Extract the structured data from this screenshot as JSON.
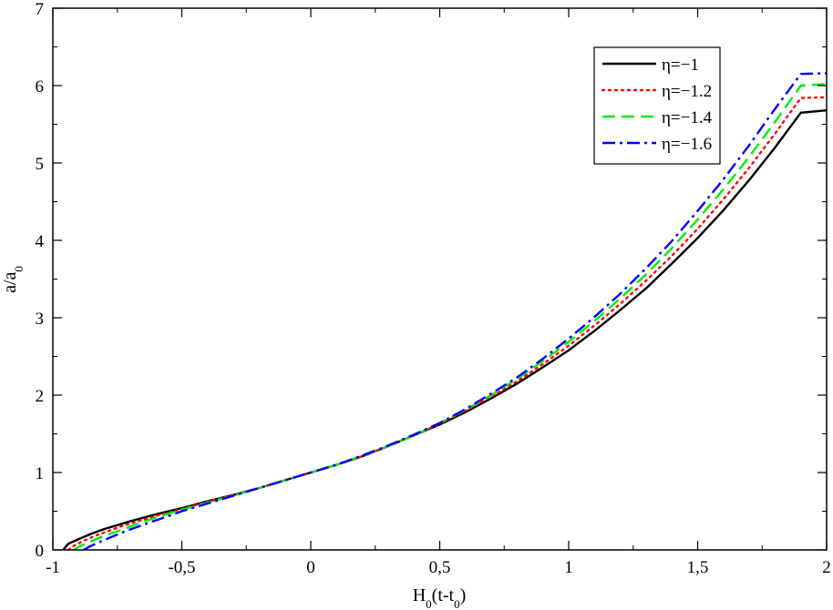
{
  "chart_data": {
    "type": "line",
    "xlabel": "H",
    "xlabel_sub": "0",
    "xlabel_mid": "(t-t",
    "xlabel_sub2": "0",
    "xlabel_end": ")",
    "ylabel": "a/a",
    "ylabel_sub": "0",
    "xlim": [
      -1,
      2
    ],
    "ylim": [
      0,
      7
    ],
    "x_ticks": [
      -1,
      -0.5,
      0,
      0.5,
      1,
      1.5,
      2
    ],
    "x_tick_labels": [
      "-1",
      "-0,5",
      "0",
      "0,5",
      "1",
      "1,5",
      "2"
    ],
    "y_ticks": [
      0,
      1,
      2,
      3,
      4,
      5,
      6,
      7
    ],
    "y_tick_labels": [
      "0",
      "1",
      "2",
      "3",
      "4",
      "5",
      "6",
      "7"
    ],
    "grid": false,
    "legend_position": "top-right",
    "series": [
      {
        "name": "η=−1",
        "color": "#000000",
        "style": "solid",
        "x": [
          -0.96,
          -0.94,
          -0.9,
          -0.85,
          -0.8,
          -0.75,
          -0.7,
          -0.6,
          -0.5,
          -0.4,
          -0.3,
          -0.2,
          -0.1,
          0,
          0.1,
          0.2,
          0.3,
          0.4,
          0.5,
          0.6,
          0.7,
          0.8,
          0.9,
          1.0,
          1.1,
          1.2,
          1.3,
          1.4,
          1.5,
          1.6,
          1.7,
          1.8,
          1.9,
          2.0
        ],
        "y": [
          0.0,
          0.08,
          0.14,
          0.21,
          0.27,
          0.32,
          0.37,
          0.46,
          0.54,
          0.63,
          0.71,
          0.8,
          0.9,
          1.0,
          1.1,
          1.21,
          1.34,
          1.48,
          1.62,
          1.78,
          1.96,
          2.15,
          2.36,
          2.58,
          2.83,
          3.1,
          3.38,
          3.7,
          4.03,
          4.39,
          4.78,
          5.2,
          5.65,
          5.68
        ]
      },
      {
        "name": "η=−1.2",
        "color": "#ff0000",
        "style": "dotted",
        "x": [
          -0.94,
          -0.92,
          -0.88,
          -0.83,
          -0.78,
          -0.73,
          -0.68,
          -0.6,
          -0.5,
          -0.4,
          -0.3,
          -0.2,
          -0.1,
          0,
          0.1,
          0.2,
          0.3,
          0.4,
          0.5,
          0.6,
          0.7,
          0.8,
          0.9,
          1.0,
          1.1,
          1.2,
          1.3,
          1.4,
          1.5,
          1.6,
          1.7,
          1.8,
          1.9,
          2.0
        ],
        "y": [
          0.0,
          0.05,
          0.12,
          0.19,
          0.25,
          0.31,
          0.36,
          0.44,
          0.53,
          0.62,
          0.71,
          0.8,
          0.9,
          1.0,
          1.1,
          1.21,
          1.34,
          1.48,
          1.63,
          1.8,
          1.98,
          2.18,
          2.4,
          2.64,
          2.9,
          3.18,
          3.48,
          3.8,
          4.15,
          4.53,
          4.94,
          5.38,
          5.84,
          5.85
        ]
      },
      {
        "name": "η=−1.4",
        "color": "#00ee00",
        "style": "dashed",
        "x": [
          -0.92,
          -0.9,
          -0.86,
          -0.81,
          -0.76,
          -0.71,
          -0.66,
          -0.6,
          -0.5,
          -0.4,
          -0.3,
          -0.2,
          -0.1,
          0,
          0.1,
          0.2,
          0.3,
          0.4,
          0.5,
          0.6,
          0.7,
          0.8,
          0.9,
          1.0,
          1.1,
          1.2,
          1.3,
          1.4,
          1.5,
          1.6,
          1.7,
          1.8,
          1.9,
          2.0
        ],
        "y": [
          0.0,
          0.04,
          0.1,
          0.17,
          0.23,
          0.29,
          0.35,
          0.42,
          0.52,
          0.61,
          0.7,
          0.8,
          0.9,
          1.0,
          1.1,
          1.22,
          1.34,
          1.48,
          1.64,
          1.81,
          2.0,
          2.21,
          2.44,
          2.69,
          2.96,
          3.25,
          3.56,
          3.9,
          4.27,
          4.66,
          5.08,
          5.53,
          6.0,
          6.02
        ]
      },
      {
        "name": "η=−1.6",
        "color": "#0000ff",
        "style": "dashdot",
        "x": [
          -0.88,
          -0.86,
          -0.82,
          -0.77,
          -0.72,
          -0.67,
          -0.62,
          -0.55,
          -0.5,
          -0.4,
          -0.3,
          -0.2,
          -0.1,
          0,
          0.1,
          0.2,
          0.3,
          0.4,
          0.5,
          0.6,
          0.7,
          0.8,
          0.9,
          1.0,
          1.1,
          1.2,
          1.3,
          1.4,
          1.5,
          1.6,
          1.7,
          1.8,
          1.9,
          2.0
        ],
        "y": [
          0.0,
          0.04,
          0.1,
          0.17,
          0.24,
          0.3,
          0.36,
          0.44,
          0.5,
          0.6,
          0.7,
          0.8,
          0.9,
          1.0,
          1.1,
          1.22,
          1.35,
          1.49,
          1.64,
          1.82,
          2.02,
          2.23,
          2.47,
          2.73,
          3.01,
          3.31,
          3.64,
          3.99,
          4.38,
          4.79,
          5.23,
          5.7,
          6.15,
          6.16
        ]
      }
    ]
  }
}
